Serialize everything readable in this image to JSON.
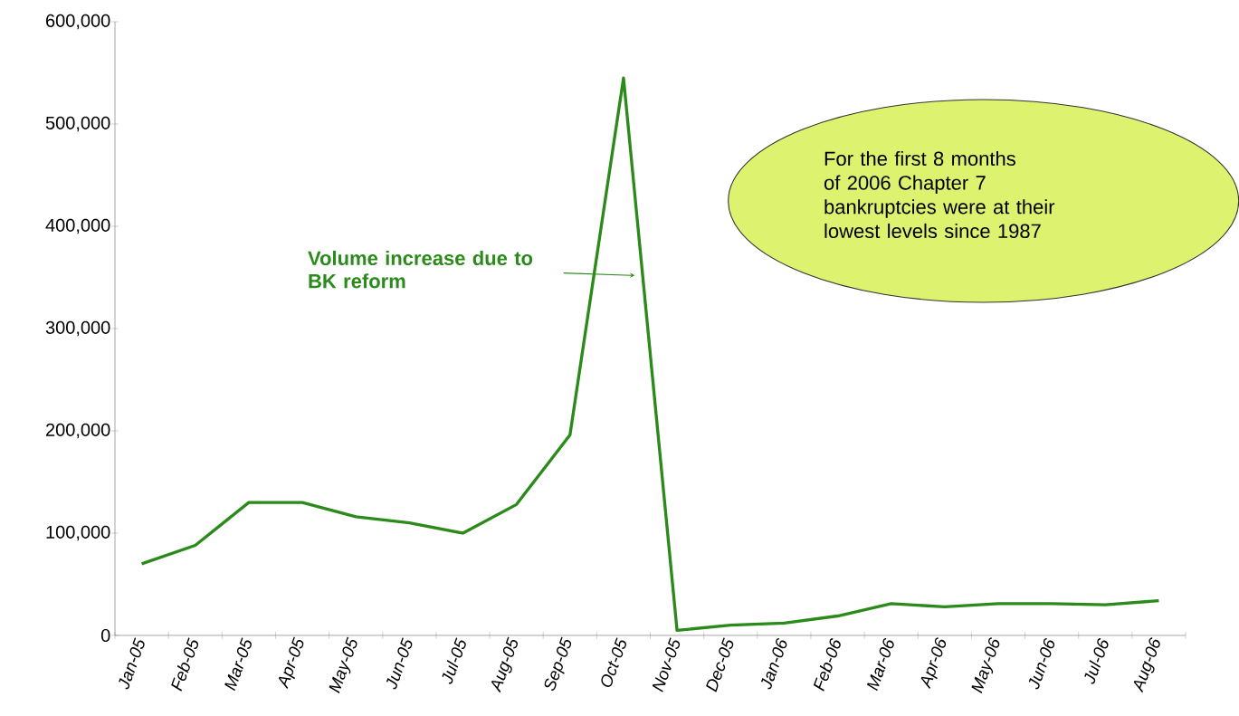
{
  "chart_data": {
    "type": "line",
    "categories": [
      "Jan-05",
      "Feb-05",
      "Mar-05",
      "Apr-05",
      "May-05",
      "Jun-05",
      "Jul-05",
      "Aug-05",
      "Sep-05",
      "Oct-05",
      "Nov-05",
      "Dec-05",
      "Jan-06",
      "Feb-06",
      "Mar-06",
      "Apr-06",
      "May-06",
      "Jun-06",
      "Jul-06",
      "Aug-06"
    ],
    "series": [
      {
        "color": "#2a8a1a",
        "values": [
          70000,
          88000,
          130000,
          130000,
          116000,
          110000,
          100000,
          128000,
          196000,
          545000,
          5000,
          10000,
          12000,
          19000,
          31000,
          28000,
          31000,
          31000,
          30000,
          34000
        ]
      }
    ],
    "ylim": [
      0,
      600000
    ],
    "yticks": [
      {
        "value": 0,
        "label": "0"
      },
      {
        "value": 100000,
        "label": "100,000"
      },
      {
        "value": 200000,
        "label": "200,000"
      },
      {
        "value": 300000,
        "label": "300,000"
      },
      {
        "value": 400000,
        "label": "400,000"
      },
      {
        "value": 500000,
        "label": "500,000"
      },
      {
        "value": 600000,
        "label": "600,000"
      }
    ],
    "annotations": [
      "Volume increase due to BK reform",
      "For the first 8 months of 2006 Chapter 7 bankruptcies were at their lowest levels since 1987"
    ]
  }
}
